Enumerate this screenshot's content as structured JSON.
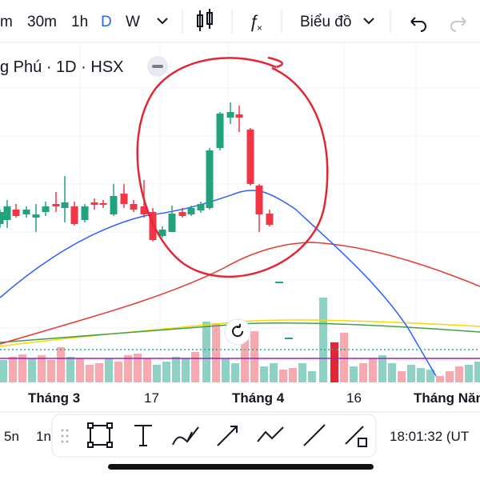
{
  "toolbar": {
    "intervals": [
      "m",
      "30m",
      "1h",
      "D",
      "W"
    ],
    "chart_type": "Biểu đồ"
  },
  "legend": {
    "title": "g Phú · 1D · HSX"
  },
  "x_axis": {
    "labels": [
      "Tháng 3",
      "17",
      "Tháng 4",
      "16",
      "Tháng Năm"
    ]
  },
  "bottom_bar": {
    "ranges": [
      "5n",
      "1n"
    ],
    "clock": "18:01:32 (UT"
  }
}
